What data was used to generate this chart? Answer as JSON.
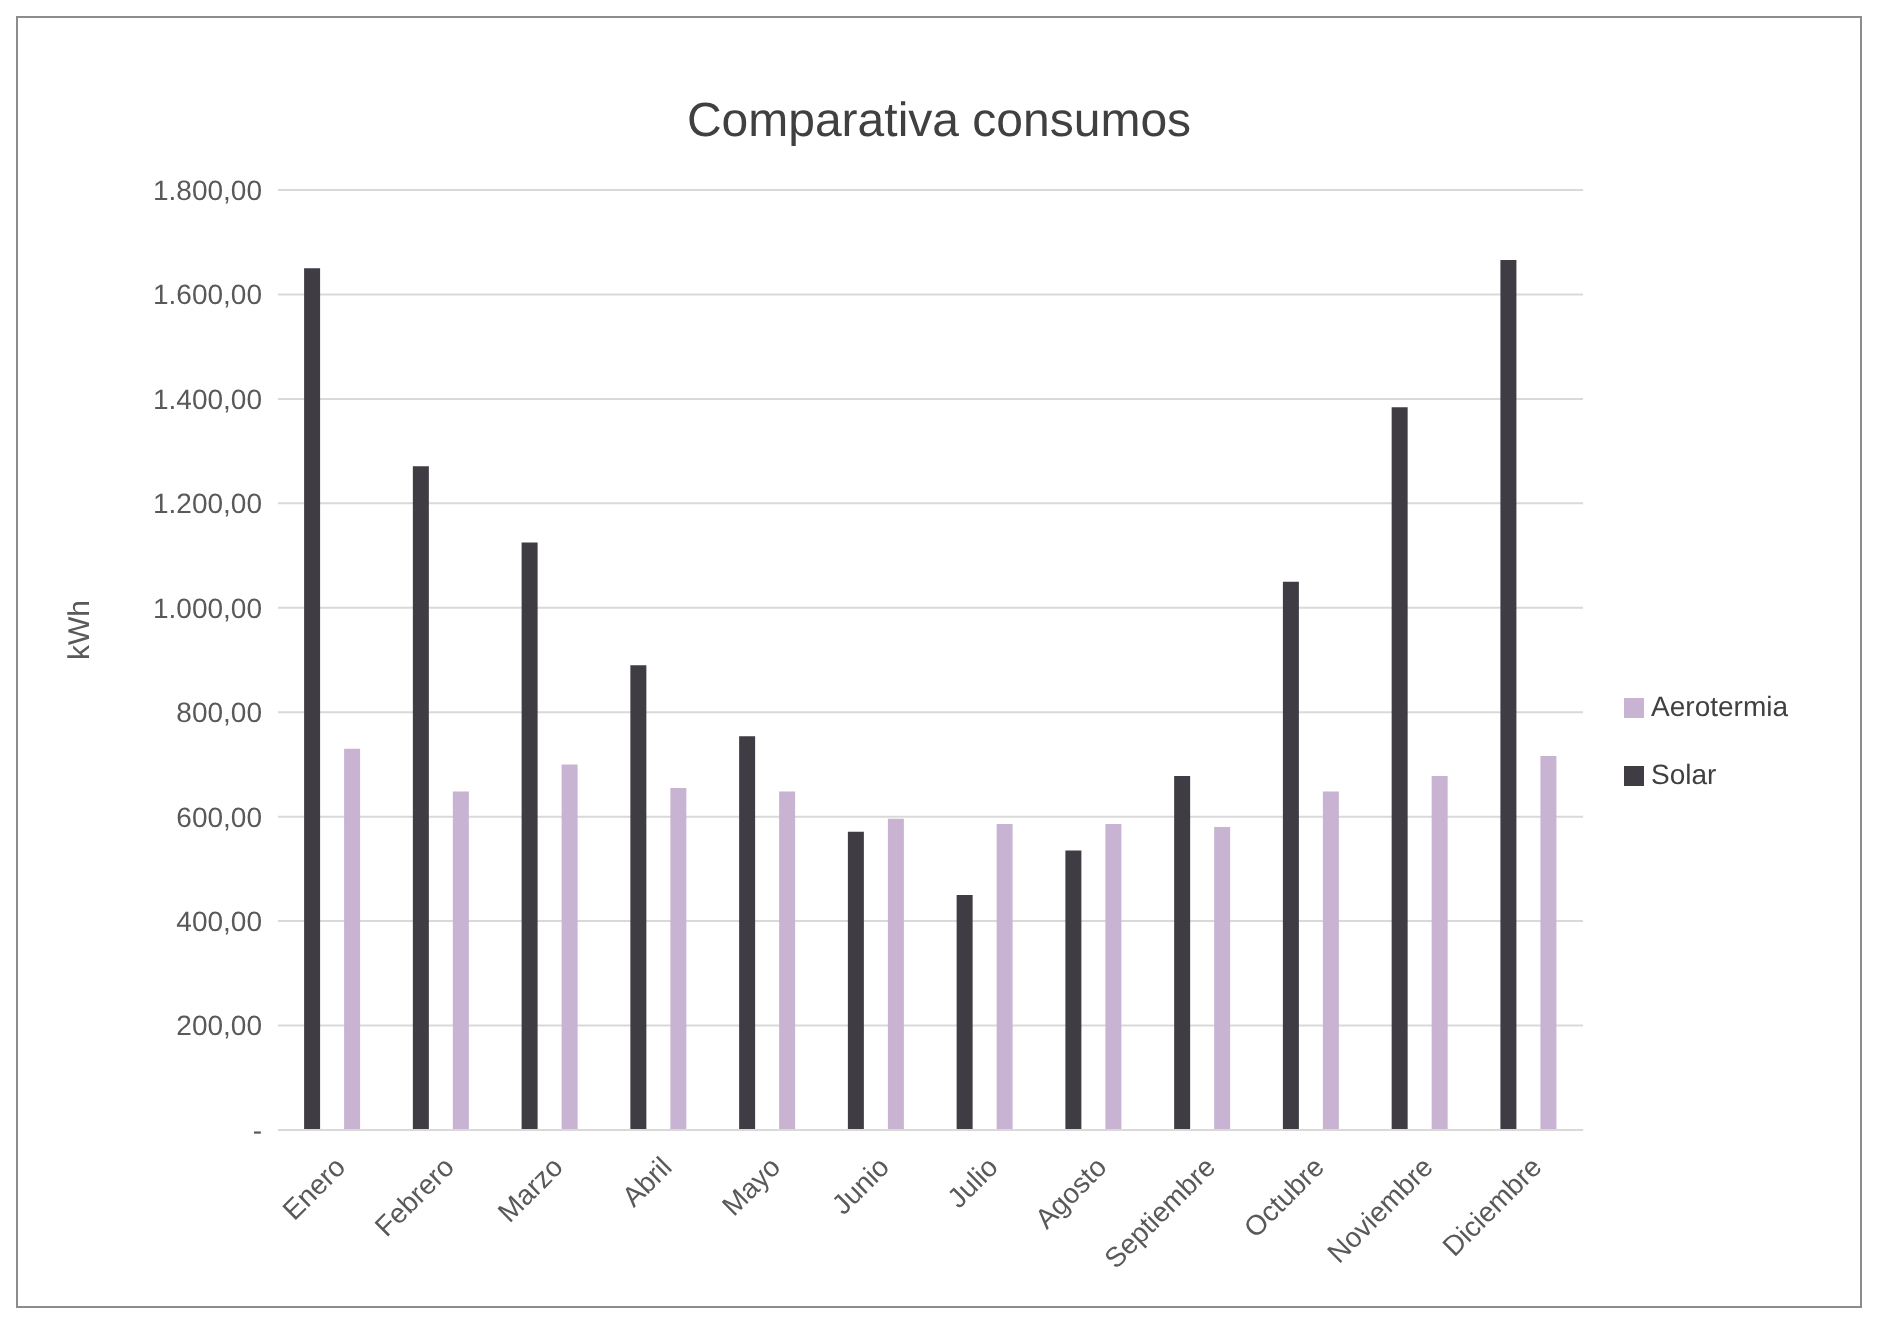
{
  "chart_data": {
    "type": "bar",
    "title": "Comparativa consumos",
    "ylabel": "kWh",
    "categories": [
      "Enero",
      "Febrero",
      "Marzo",
      "Abril",
      "Mayo",
      "Junio",
      "Julio",
      "Agosto",
      "Septiembre",
      "Octubre",
      "Noviembre",
      "Diciembre"
    ],
    "series": [
      {
        "name": "Solar",
        "color": "#3f3c43",
        "values": [
          1650,
          1271,
          1125,
          890,
          754,
          571,
          450,
          535,
          678,
          1050,
          1384,
          1666
        ]
      },
      {
        "name": "Aerotermia",
        "color": "#c8b4d2",
        "values": [
          730,
          648,
          700,
          655,
          648,
          596,
          586,
          586,
          580,
          648,
          678,
          716
        ]
      }
    ],
    "ylim": [
      0,
      1800
    ],
    "yticks": [
      {
        "value": 0,
        "label": "-"
      },
      {
        "value": 200,
        "label": "200,00"
      },
      {
        "value": 400,
        "label": "400,00"
      },
      {
        "value": 600,
        "label": "600,00"
      },
      {
        "value": 800,
        "label": "800,00"
      },
      {
        "value": 1000,
        "label": "1.000,00"
      },
      {
        "value": 1200,
        "label": "1.200,00"
      },
      {
        "value": 1400,
        "label": "1.400,00"
      },
      {
        "value": 1600,
        "label": "1.600,00"
      },
      {
        "value": 1800,
        "label": "1.800,00"
      }
    ],
    "grid": "y",
    "legend": "right"
  }
}
